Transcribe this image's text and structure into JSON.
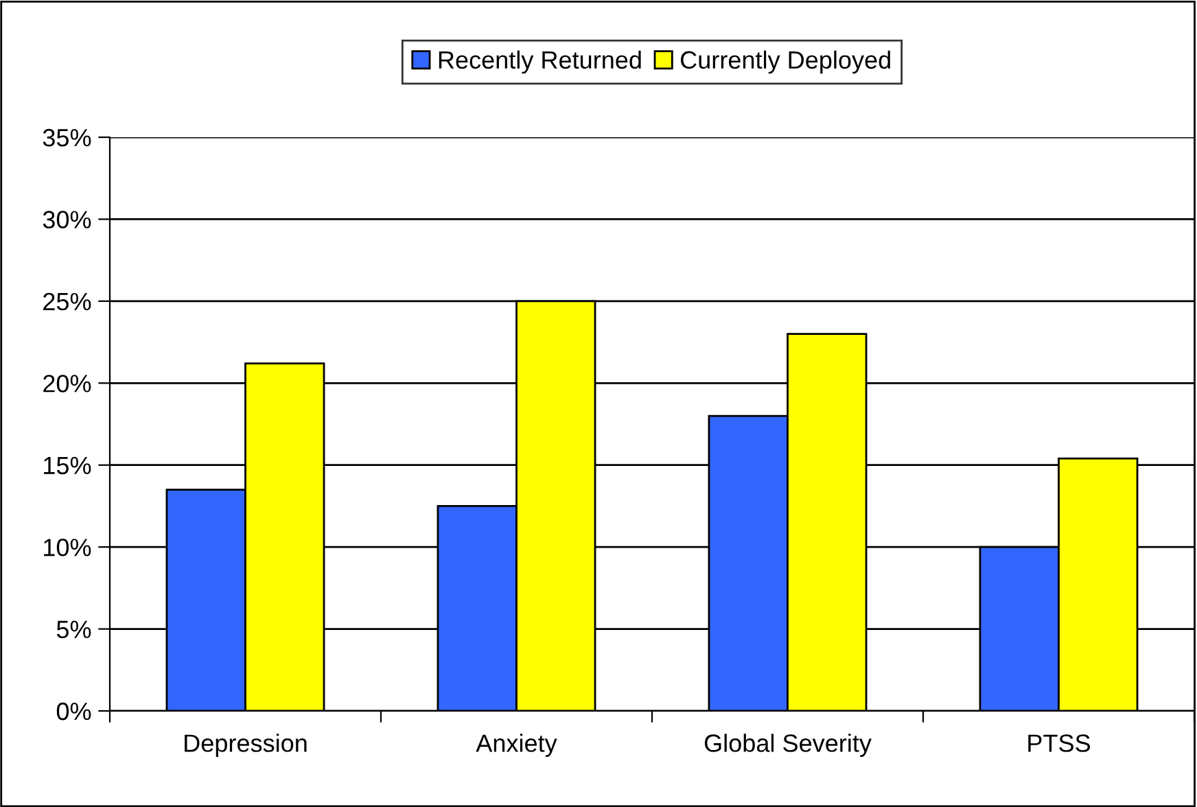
{
  "chart_data": {
    "type": "bar",
    "categories": [
      "Depression",
      "Anxiety",
      "Global Severity",
      "PTSS"
    ],
    "series": [
      {
        "name": "Recently Returned",
        "color": "#3366ff",
        "values": [
          13.5,
          12.5,
          18.0,
          10.0
        ]
      },
      {
        "name": "Currently Deployed",
        "color": "#ffff00",
        "values": [
          21.2,
          25.0,
          23.0,
          15.4
        ]
      }
    ],
    "ylim": [
      0,
      35
    ],
    "yticks": [
      {
        "value": 0,
        "label": "0%"
      },
      {
        "value": 5,
        "label": "5%"
      },
      {
        "value": 10,
        "label": "10%"
      },
      {
        "value": 15,
        "label": "15%"
      },
      {
        "value": 20,
        "label": "20%"
      },
      {
        "value": 25,
        "label": "25%"
      },
      {
        "value": 30,
        "label": "30%"
      },
      {
        "value": 35,
        "label": "35%"
      }
    ],
    "grid": "y",
    "legend": "top"
  }
}
